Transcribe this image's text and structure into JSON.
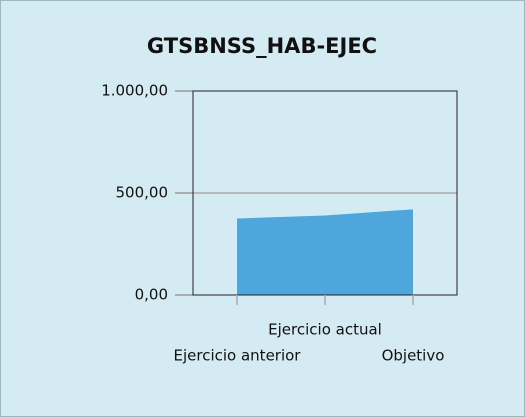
{
  "chart_data": {
    "type": "area",
    "title": "GTSBNSS_HAB-EJEC",
    "categories": [
      "Ejercicio anterior",
      "Ejercicio actual",
      "Objetivo"
    ],
    "values": [
      375,
      390,
      420
    ],
    "color": "#4fa6dc",
    "ylim": [
      0,
      1000
    ],
    "yticks": [
      {
        "value": 0,
        "label": "0,00"
      },
      {
        "value": 500,
        "label": "500,00"
      },
      {
        "value": 1000,
        "label": "1.000,00"
      }
    ],
    "grid": true
  }
}
